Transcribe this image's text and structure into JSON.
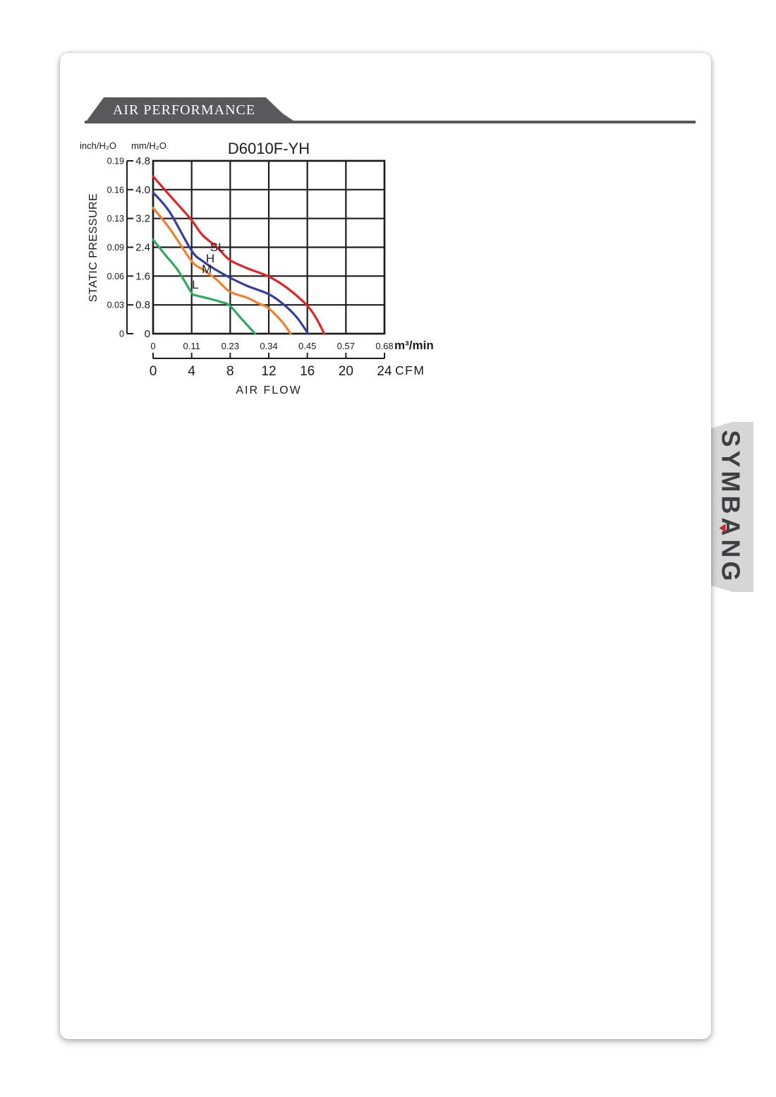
{
  "header": {
    "title": "AIR PERFORMANCE",
    "ribbon_color": "#59595b"
  },
  "brand": {
    "pre": "SYMB",
    "accent_letter": "A",
    "post": "NG",
    "text_color": "#3f3f42",
    "accent_color": "#c1272d"
  },
  "chart_data": {
    "type": "line",
    "title": "D6010F-YH",
    "ylabel": "STATIC PRESSURE",
    "xlabel": "AIR FLOW",
    "y_unit_primary": "inch/H₂O",
    "y_unit_secondary": "mm/H₂O",
    "y_ticks_mm": [
      "4.8",
      "4.0",
      "3.2",
      "2.4",
      "1.6",
      "0.8",
      "0"
    ],
    "y_ticks_inch": [
      "0.19",
      "0.16",
      "0.13",
      "0.09",
      "0.06",
      "0.03",
      "0"
    ],
    "x_ticks_m3min": [
      "0",
      "0.11",
      "0.23",
      "0.34",
      "0.45",
      "0.57",
      "0.68"
    ],
    "x_unit_m3min": "m³/min",
    "x_ticks_cfm": [
      "0",
      "4",
      "8",
      "12",
      "16",
      "20",
      "24"
    ],
    "x_unit_cfm": "CFM",
    "xlim": [
      0,
      0.68
    ],
    "ylim": [
      0,
      4.8
    ],
    "grid": true,
    "legend_position": "on-curve",
    "series": [
      {
        "name": "SL",
        "color": "#e02529",
        "label_x": 0.189,
        "label_y": 2.41,
        "points": [
          [
            0,
            4.37
          ],
          [
            0.048,
            3.85
          ],
          [
            0.11,
            3.19
          ],
          [
            0.145,
            2.74
          ],
          [
            0.187,
            2.41
          ],
          [
            0.225,
            2.05
          ],
          [
            0.276,
            1.82
          ],
          [
            0.339,
            1.59
          ],
          [
            0.394,
            1.27
          ],
          [
            0.453,
            0.78
          ],
          [
            0.48,
            0.42
          ],
          [
            0.503,
            0
          ]
        ]
      },
      {
        "name": "H",
        "color": "#333e9e",
        "label_x": 0.168,
        "label_y": 2.1,
        "points": [
          [
            0,
            3.92
          ],
          [
            0.048,
            3.39
          ],
          [
            0.113,
            2.31
          ],
          [
            0.145,
            2.02
          ],
          [
            0.187,
            1.76
          ],
          [
            0.225,
            1.56
          ],
          [
            0.276,
            1.33
          ],
          [
            0.339,
            1.1
          ],
          [
            0.38,
            0.84
          ],
          [
            0.42,
            0.48
          ],
          [
            0.456,
            0
          ]
        ]
      },
      {
        "name": "M",
        "color": "#ef8030",
        "label_x": 0.158,
        "label_y": 1.8,
        "points": [
          [
            0,
            3.49
          ],
          [
            0.048,
            2.93
          ],
          [
            0.113,
            2.02
          ],
          [
            0.145,
            1.79
          ],
          [
            0.187,
            1.5
          ],
          [
            0.225,
            1.17
          ],
          [
            0.276,
            1.0
          ],
          [
            0.31,
            0.84
          ],
          [
            0.339,
            0.71
          ],
          [
            0.38,
            0.32
          ],
          [
            0.404,
            0
          ]
        ]
      },
      {
        "name": "L",
        "color": "#2fa95a",
        "label_x": 0.124,
        "label_y": 1.37,
        "points": [
          [
            0,
            2.61
          ],
          [
            0.034,
            2.21
          ],
          [
            0.073,
            1.76
          ],
          [
            0.113,
            1.14
          ],
          [
            0.124,
            1.07
          ],
          [
            0.166,
            0.97
          ],
          [
            0.2,
            0.88
          ],
          [
            0.225,
            0.78
          ],
          [
            0.262,
            0.39
          ],
          [
            0.3,
            0
          ]
        ]
      }
    ]
  }
}
